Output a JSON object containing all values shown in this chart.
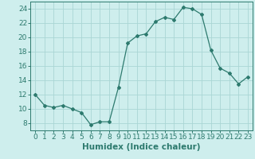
{
  "x": [
    0,
    1,
    2,
    3,
    4,
    5,
    6,
    7,
    8,
    9,
    10,
    11,
    12,
    13,
    14,
    15,
    16,
    17,
    18,
    19,
    20,
    21,
    22,
    23
  ],
  "y": [
    12,
    10.5,
    10.2,
    10.5,
    10.0,
    9.5,
    7.8,
    8.2,
    8.2,
    13.0,
    19.2,
    20.2,
    20.5,
    22.2,
    22.8,
    22.5,
    24.2,
    24.0,
    23.2,
    18.2,
    15.7,
    15.0,
    13.5,
    14.5
  ],
  "line_color": "#2d7a6e",
  "marker": "D",
  "marker_size": 2.0,
  "bg_color": "#ceeeed",
  "grid_color": "#aad6d4",
  "xlabel": "Humidex (Indice chaleur)",
  "ylim": [
    7,
    25
  ],
  "yticks": [
    8,
    10,
    12,
    14,
    16,
    18,
    20,
    22,
    24
  ],
  "xticks": [
    0,
    1,
    2,
    3,
    4,
    5,
    6,
    7,
    8,
    9,
    10,
    11,
    12,
    13,
    14,
    15,
    16,
    17,
    18,
    19,
    20,
    21,
    22,
    23
  ],
  "tick_color": "#2d7a6e",
  "label_fontsize": 6.5,
  "axis_fontsize": 7.5
}
